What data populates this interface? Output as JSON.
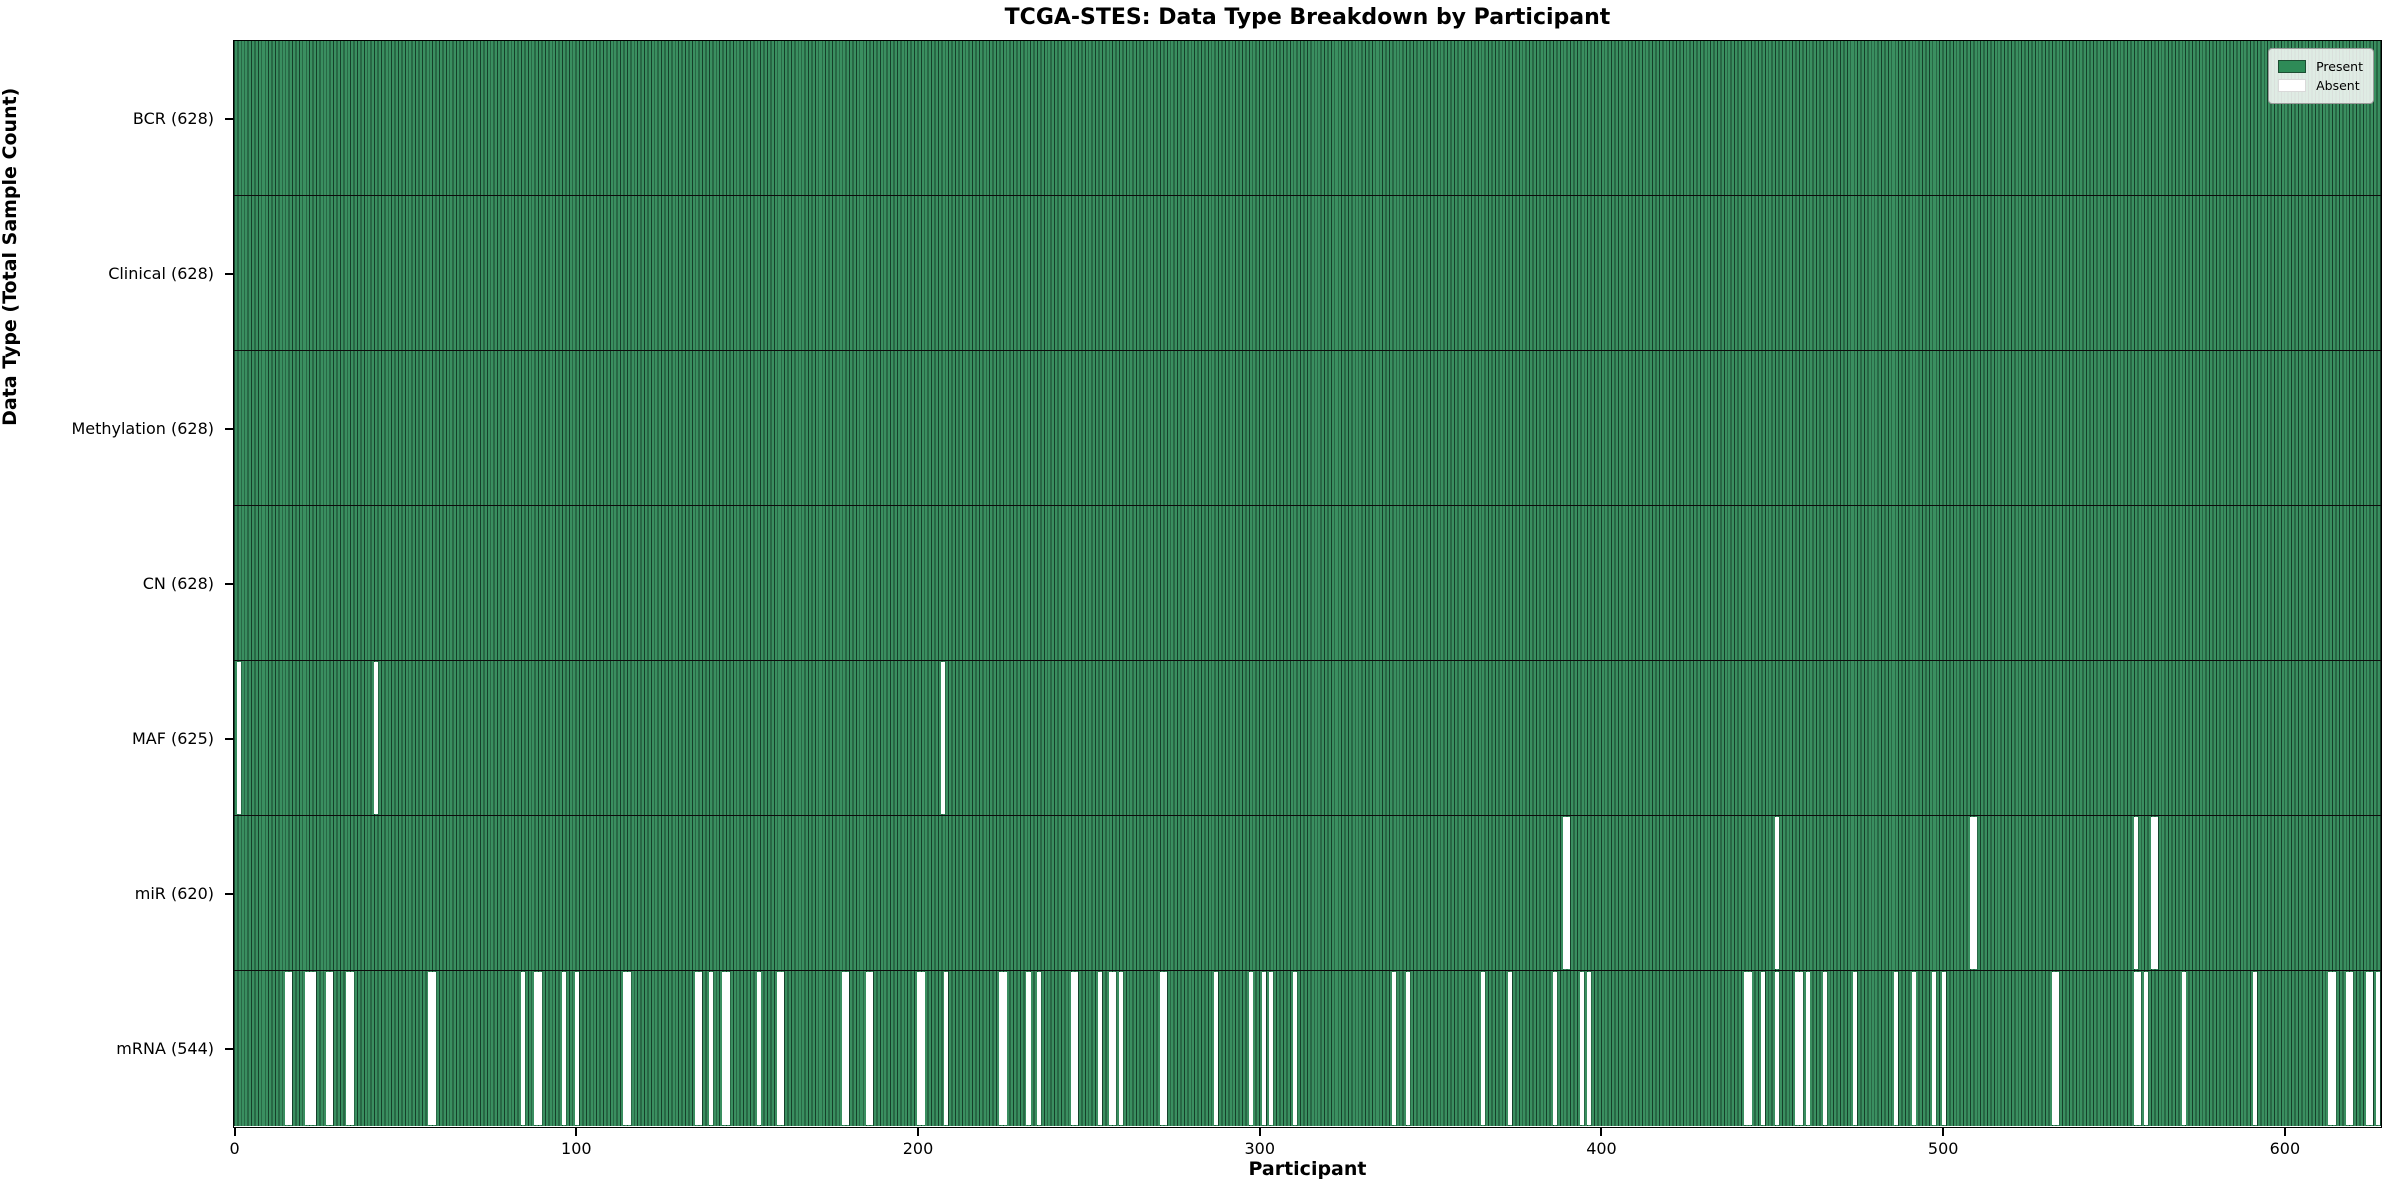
{
  "title": "TCGA-STES: Data Type Breakdown by Participant",
  "xlabel": "Participant",
  "ylabel": "Data Type (Total Sample Count)",
  "legend": {
    "present_label": "Present",
    "absent_label": "Absent"
  },
  "colors": {
    "present_fill": "#3a8f60",
    "present_edge": "#15402a",
    "absent": "#ffffff",
    "legend_present_swatch": "#2E8B57"
  },
  "chart_data": {
    "type": "heatmap",
    "title": "TCGA-STES: Data Type Breakdown by Participant",
    "xlabel": "Participant",
    "ylabel": "Data Type (Total Sample Count)",
    "legend": [
      "Present",
      "Absent"
    ],
    "legend_position": "upper right",
    "grid": false,
    "n_participants": 628,
    "x_ticks": [
      0,
      100,
      200,
      300,
      400,
      500,
      600
    ],
    "x_range": [
      0,
      628
    ],
    "rows": [
      {
        "label": "BCR (628)",
        "data_type": "BCR",
        "present_count": 628,
        "absent_participants": []
      },
      {
        "label": "Clinical (628)",
        "data_type": "Clinical",
        "present_count": 628,
        "absent_participants": []
      },
      {
        "label": "Methylation (628)",
        "data_type": "Methylation",
        "present_count": 628,
        "absent_participants": []
      },
      {
        "label": "CN (628)",
        "data_type": "CN",
        "present_count": 628,
        "absent_participants": []
      },
      {
        "label": "MAF (625)",
        "data_type": "MAF",
        "present_count": 625,
        "absent_participants": [
          1,
          41,
          207
        ]
      },
      {
        "label": "miR (620)",
        "data_type": "miR",
        "present_count": 620,
        "absent_participants": [
          389,
          390,
          451,
          508,
          509,
          556,
          561,
          562
        ]
      },
      {
        "label": "mRNA (544)",
        "data_type": "mRNA",
        "present_count": 544,
        "absent_participants": [
          15,
          16,
          21,
          22,
          23,
          27,
          28,
          33,
          34,
          57,
          58,
          84,
          88,
          89,
          96,
          100,
          114,
          115,
          135,
          136,
          139,
          143,
          144,
          153,
          159,
          160,
          178,
          179,
          185,
          186,
          200,
          201,
          208,
          224,
          225,
          232,
          235,
          245,
          246,
          253,
          256,
          257,
          259,
          271,
          272,
          287,
          297,
          301,
          303,
          310,
          339,
          343,
          365,
          373,
          386,
          394,
          396,
          442,
          443,
          447,
          451,
          457,
          458,
          460,
          465,
          474,
          486,
          491,
          497,
          500,
          532,
          533,
          556,
          557,
          559,
          570,
          591,
          613,
          614,
          618,
          619,
          624,
          625,
          627
        ]
      }
    ]
  }
}
